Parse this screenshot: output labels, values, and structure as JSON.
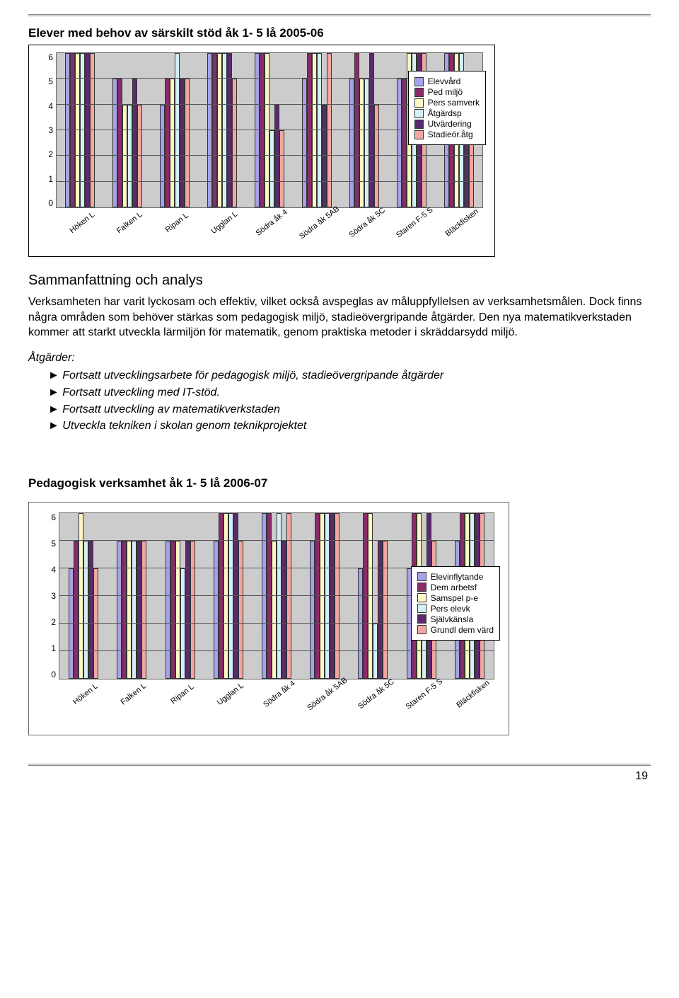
{
  "page_number": "19",
  "chart1": {
    "title": "Elever med behov av särskilt stöd åk 1- 5 lå 2005-06",
    "type": "bar",
    "ylim": [
      0,
      6
    ],
    "ytick_step": 1,
    "background_color": "#cccccc",
    "grid_color": "#555555",
    "categories": [
      "Höken L",
      "Falken L",
      "Ripan L",
      "Ugglan L",
      "Södra åk 4",
      "Södra åk 5AB",
      "Södra åk 5C",
      "Staren F-5 S",
      "Bläckfisken"
    ],
    "series": [
      {
        "name": "Elevvård",
        "color": "#a5a2e8"
      },
      {
        "name": "Ped miljö",
        "color": "#8b2a6a"
      },
      {
        "name": "Pers samverk",
        "color": "#fdf7c4"
      },
      {
        "name": "Åtgärdsp",
        "color": "#d4f0f5"
      },
      {
        "name": "Utvärdering",
        "color": "#5a2a6e"
      },
      {
        "name": "Stadieör.åtg",
        "color": "#f2a6a0"
      }
    ],
    "values": [
      [
        6,
        6,
        6,
        6,
        6,
        6
      ],
      [
        5,
        5,
        4,
        4,
        5,
        4
      ],
      [
        4,
        5,
        5,
        6,
        5,
        5
      ],
      [
        6,
        6,
        6,
        6,
        6,
        5
      ],
      [
        6,
        6,
        6,
        3,
        4,
        3
      ],
      [
        5,
        6,
        6,
        6,
        4,
        6
      ],
      [
        5,
        6,
        5,
        5,
        6,
        4
      ],
      [
        5,
        5,
        6,
        6,
        6,
        6
      ],
      [
        6,
        6,
        6,
        6,
        4,
        5
      ]
    ]
  },
  "summary": {
    "heading": "Sammanfattning och analys",
    "p1": "Verksamheten har varit lyckosam  och effektiv, vilket också avspeglas av måluppfyllelsen av verksamhets­målen. Dock finns några områden som behöver stärkas som pedagogisk miljö, stadieövergripande åtgärder. Den nya matematikverkstaden kommer att starkt utveckla lärmiljön för matematik, genom praktiska metoder i skräddarsydd miljö.",
    "actions_label": "Åtgärder:",
    "actions": [
      "Fortsatt utvecklingsarbete för  pedagogisk miljö, stadieövergripande åtgärder",
      "Fortsatt utveckling med IT-stöd.",
      "Fortsatt utveckling av matematikverkstaden",
      "Utveckla tekniken i skolan genom teknikprojektet"
    ]
  },
  "chart2": {
    "title": "Pedagogisk verksamhet åk 1- 5 lå 2006-07",
    "type": "bar",
    "ylim": [
      0,
      6
    ],
    "ytick_step": 1,
    "background_color": "#cccccc",
    "grid_color": "#555555",
    "categories": [
      "Höken L",
      "Falken L",
      "Ripan L",
      "Ugglan L",
      "Södra åk 4",
      "Södra åk 5AB",
      "Södra åk 5C",
      "Staren F-5 S",
      "Bläckfisken"
    ],
    "series": [
      {
        "name": "Elevinflytande",
        "color": "#a5a2e8"
      },
      {
        "name": "Dem arbetsf",
        "color": "#8b2a6a"
      },
      {
        "name": "Samspel p-e",
        "color": "#fdf7c4"
      },
      {
        "name": "Pers elevk",
        "color": "#d4f0f5"
      },
      {
        "name": "Självkänsla",
        "color": "#5a2a6e"
      },
      {
        "name": "Grundl dem värd",
        "color": "#f2a6a0"
      }
    ],
    "values": [
      [
        4,
        5,
        6,
        5,
        5,
        4
      ],
      [
        5,
        5,
        5,
        5,
        5,
        5
      ],
      [
        5,
        5,
        5,
        4,
        5,
        5
      ],
      [
        5,
        6,
        6,
        6,
        6,
        5
      ],
      [
        6,
        6,
        5,
        6,
        5,
        6
      ],
      [
        5,
        6,
        6,
        6,
        6,
        6
      ],
      [
        4,
        6,
        6,
        2,
        5,
        5
      ],
      [
        4,
        6,
        6,
        3,
        6,
        5
      ],
      [
        5,
        6,
        6,
        6,
        6,
        6
      ]
    ]
  }
}
